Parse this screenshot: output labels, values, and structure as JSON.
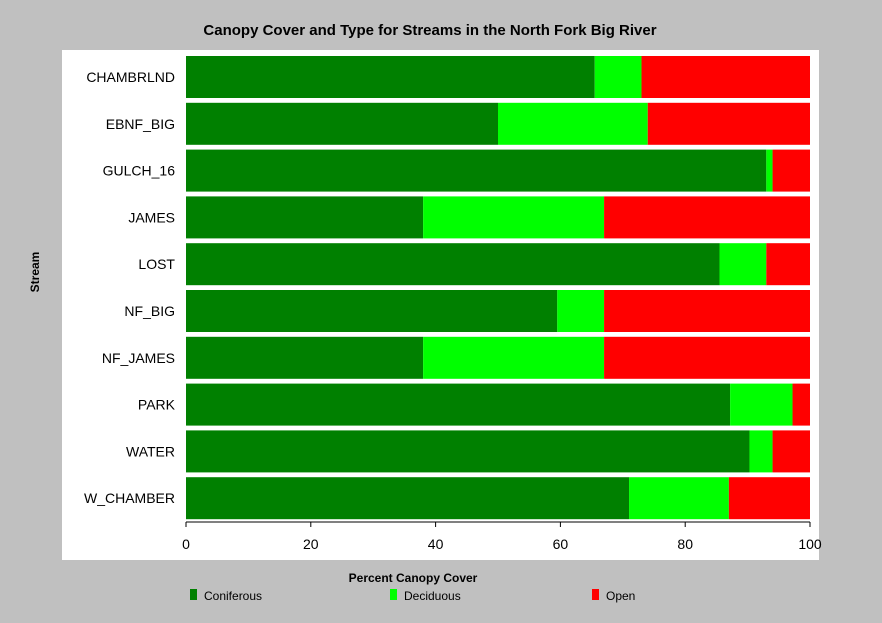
{
  "chart_data": {
    "type": "bar",
    "orientation": "horizontal",
    "stacked": true,
    "title": "Canopy Cover and Type for Streams in the North Fork Big River",
    "xlabel": "Percent Canopy Cover",
    "ylabel": "Stream",
    "xlim": [
      0,
      100
    ],
    "xticks": [
      0,
      20,
      40,
      60,
      80,
      100
    ],
    "grid": false,
    "legend_position": "bottom",
    "categories": [
      "CHAMBRLND",
      "EBNF_BIG",
      "GULCH_16",
      "JAMES",
      "LOST",
      "NF_BIG",
      "NF_JAMES",
      "PARK",
      "WATER",
      "W_CHAMBER"
    ],
    "series": [
      {
        "name": "Coniferous",
        "color": "#008000",
        "values": [
          65.5,
          50,
          93,
          38,
          85.5,
          59.5,
          38,
          87.2,
          90.3,
          71
        ]
      },
      {
        "name": "Deciduous",
        "color": "#00ff00",
        "values": [
          7.5,
          24,
          1,
          29,
          7.5,
          7.5,
          29,
          10,
          3.7,
          16
        ]
      },
      {
        "name": "Open",
        "color": "#ff0000",
        "values": [
          27,
          26,
          6,
          33,
          7,
          33,
          33,
          2.8,
          6,
          13
        ]
      }
    ]
  }
}
